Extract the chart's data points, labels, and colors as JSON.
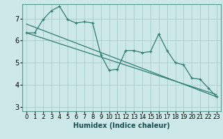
{
  "xlabel": "Humidex (Indice chaleur)",
  "ylabel": "",
  "bg_color": "#cce8e8",
  "grid_color": "#aacccc",
  "line_color": "#2e7d72",
  "xlim": [
    -0.5,
    23.5
  ],
  "ylim": [
    2.8,
    7.65
  ],
  "yticks": [
    3,
    4,
    5,
    6,
    7
  ],
  "xtick_labels": [
    "0",
    "1",
    "2",
    "3",
    "4",
    "5",
    "6",
    "7",
    "8",
    "9",
    "10",
    "11",
    "12",
    "13",
    "14",
    "15",
    "16",
    "17",
    "18",
    "19",
    "20",
    "21",
    "22",
    "23"
  ],
  "series1_x": [
    0,
    1,
    2,
    3,
    4,
    5,
    6,
    7,
    8,
    9,
    10,
    11,
    12,
    13,
    14,
    15,
    16,
    17,
    18,
    19,
    20,
    21,
    22,
    23
  ],
  "series1_y": [
    6.35,
    6.35,
    6.95,
    7.35,
    7.55,
    6.95,
    6.8,
    6.85,
    6.8,
    5.35,
    4.65,
    4.7,
    5.55,
    5.55,
    5.45,
    5.5,
    6.3,
    5.55,
    5.0,
    4.9,
    4.3,
    4.25,
    3.85,
    3.45
  ],
  "series2_x": [
    0,
    23
  ],
  "series2_y": [
    6.75,
    3.45
  ],
  "series3_x": [
    0,
    23
  ],
  "series3_y": [
    6.35,
    3.55
  ],
  "xlabel_fontsize": 7,
  "tick_fontsize": 6,
  "ytick_fontsize": 7
}
